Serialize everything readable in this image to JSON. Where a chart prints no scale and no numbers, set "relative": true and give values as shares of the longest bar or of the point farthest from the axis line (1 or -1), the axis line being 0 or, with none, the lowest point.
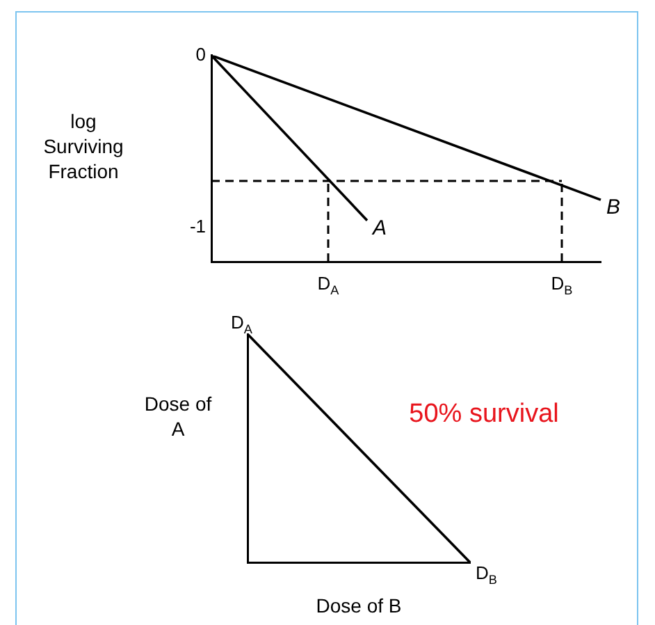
{
  "chart_data": [
    {
      "type": "line",
      "ylabel": "log Surviving Fraction",
      "categories": [
        null,
        null,
        null,
        "D$_{A}$",
        null,
        null,
        null,
        null,
        null,
        "D$_{B}$",
        null
      ],
      "ylim": [
        -1.2,
        0
      ],
      "yticks": [
        0,
        -1
      ],
      "grid": false,
      "legend": false,
      "marker": "none",
      "line_style": "solid",
      "series": [
        {
          "name": "A",
          "color": "#000000",
          "values": [
            0,
            null,
            null,
            null,
            -0.96,
            null,
            null,
            null,
            null,
            null,
            null
          ]
        },
        {
          "name": "B",
          "color": "#000000",
          "values": [
            0,
            null,
            null,
            null,
            null,
            null,
            null,
            null,
            null,
            null,
            -0.84
          ]
        }
      ],
      "ref_lines": [
        {
          "axis": "y",
          "value": -0.73,
          "line_style": "dashed"
        },
        {
          "axis": "x",
          "value": "D$_{A}$",
          "line_style": "dashed"
        },
        {
          "axis": "x",
          "value": "D$_{B}$",
          "line_style": "dashed"
        }
      ]
    },
    {
      "type": "line",
      "relative": true,
      "xlabel": "Dose of B",
      "ylabel": "Dose of A",
      "categories": [
        null,
        null
      ],
      "grid": false,
      "legend": false,
      "marker": "none",
      "line_style": "solid",
      "series": [
        {
          "color": "#000000",
          "values": [
            1,
            0
          ]
        }
      ],
      "annotations": [
        "D$_{A}$",
        "D$_{B}$",
        "50% survival"
      ]
    }
  ]
}
